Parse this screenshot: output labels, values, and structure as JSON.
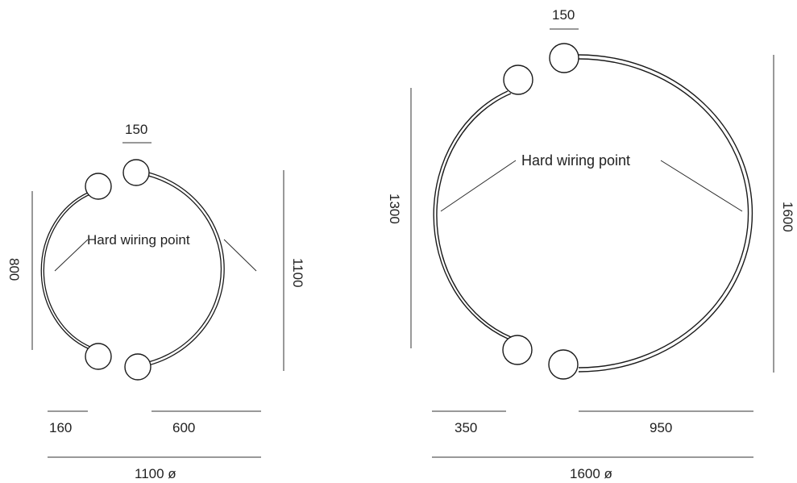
{
  "colors": {
    "line": "#1a1a1a",
    "text": "#222222",
    "background": "#ffffff"
  },
  "small_lamp": {
    "bulb_spacing_label": "150",
    "left_height_label": "800",
    "right_height_label": "1100",
    "wiring_label": "Hard wiring point",
    "left_width_label": "160",
    "right_width_label": "600",
    "diameter_label": "1100 ø"
  },
  "large_lamp": {
    "bulb_spacing_label": "150",
    "left_height_label": "1300",
    "right_height_label": "1600",
    "wiring_label": "Hard wiring point",
    "left_width_label": "350",
    "right_width_label": "950",
    "diameter_label": "1600 ø"
  }
}
